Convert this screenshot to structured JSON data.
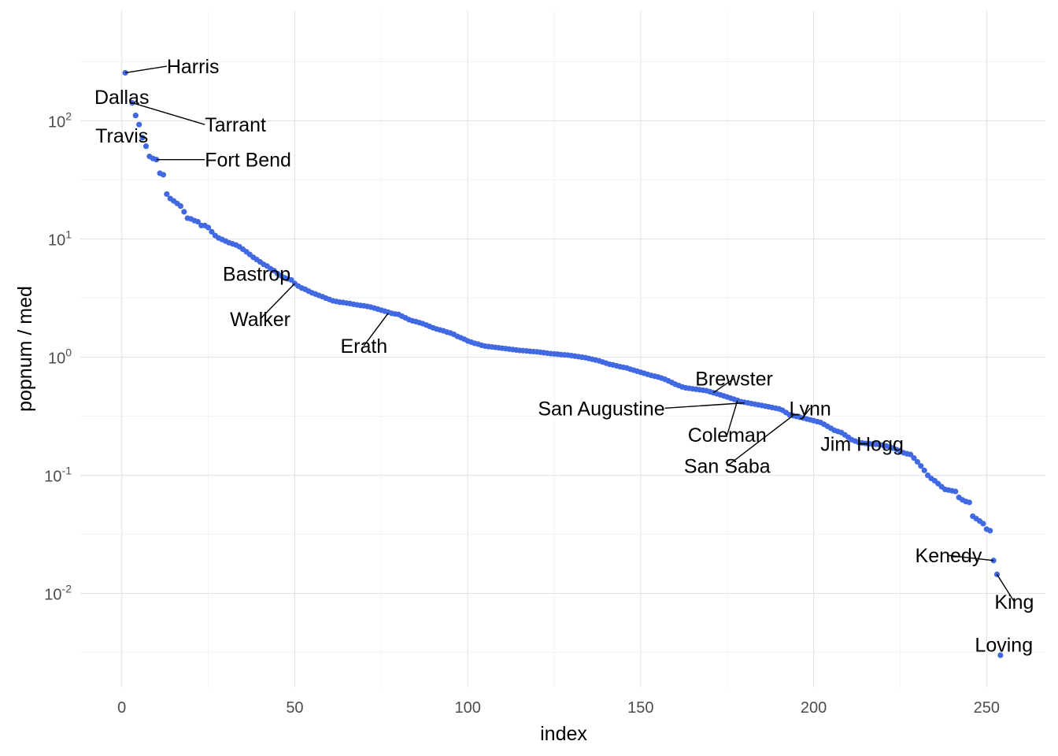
{
  "chart_data": {
    "type": "scatter",
    "xlabel": "index",
    "ylabel": "popnum / med",
    "x_scale": "linear",
    "y_scale": "log10",
    "xlim": [
      -12,
      267
    ],
    "ylim": [
      0.0016,
      850
    ],
    "x_ticks": [
      {
        "value": 0,
        "label": "0"
      },
      {
        "value": 50,
        "label": "50"
      },
      {
        "value": 100,
        "label": "100"
      },
      {
        "value": 150,
        "label": "150"
      },
      {
        "value": 200,
        "label": "200"
      },
      {
        "value": 250,
        "label": "250"
      }
    ],
    "y_ticks": [
      {
        "value": 0.01,
        "base": "10",
        "exp": "-2"
      },
      {
        "value": 0.1,
        "base": "10",
        "exp": "-1"
      },
      {
        "value": 1,
        "base": "10",
        "exp": "0"
      },
      {
        "value": 10,
        "base": "10",
        "exp": "1"
      },
      {
        "value": 100,
        "base": "10",
        "exp": "2"
      }
    ],
    "grid": true,
    "point_color": "#4169E1",
    "points": [
      [
        1,
        255
      ],
      [
        3,
        142
      ],
      [
        4,
        111
      ],
      [
        5,
        93
      ],
      [
        6,
        72
      ],
      [
        7,
        61
      ],
      [
        8,
        50
      ],
      [
        9,
        48
      ],
      [
        10,
        47
      ],
      [
        11,
        36
      ],
      [
        12,
        35
      ],
      [
        13,
        24
      ],
      [
        14,
        22
      ],
      [
        15,
        21
      ],
      [
        16,
        20
      ],
      [
        17,
        19
      ],
      [
        18,
        17
      ],
      [
        19,
        15
      ],
      [
        20,
        14.8
      ],
      [
        21,
        14.3
      ],
      [
        22,
        14
      ],
      [
        23,
        13
      ],
      [
        24,
        13
      ],
      [
        25,
        12.5
      ],
      [
        26,
        11.5
      ],
      [
        27,
        10.7
      ],
      [
        28,
        10.2
      ],
      [
        29,
        9.9
      ],
      [
        30,
        9.6
      ],
      [
        31,
        9.3
      ],
      [
        32,
        9.1
      ],
      [
        33,
        8.9
      ],
      [
        34,
        8.6
      ],
      [
        35,
        8.2
      ],
      [
        36,
        7.8
      ],
      [
        37,
        7.4
      ],
      [
        38,
        7.0
      ],
      [
        39,
        6.7
      ],
      [
        40,
        6.4
      ],
      [
        41,
        6.1
      ],
      [
        42,
        5.9
      ],
      [
        43,
        5.6
      ],
      [
        44,
        5.4
      ],
      [
        45,
        5.1
      ],
      [
        46,
        4.9
      ],
      [
        47,
        4.7
      ],
      [
        48,
        4.6
      ],
      [
        49,
        4.5
      ],
      [
        50,
        4.2
      ],
      [
        51,
        4.0
      ],
      [
        52,
        3.85
      ],
      [
        53,
        3.75
      ],
      [
        54,
        3.62
      ],
      [
        55,
        3.5
      ],
      [
        56,
        3.42
      ],
      [
        57,
        3.33
      ],
      [
        58,
        3.25
      ],
      [
        59,
        3.16
      ],
      [
        60,
        3.08
      ],
      [
        61,
        3.0
      ],
      [
        62,
        2.96
      ],
      [
        63,
        2.92
      ],
      [
        64,
        2.9
      ],
      [
        65,
        2.87
      ],
      [
        66,
        2.84
      ],
      [
        67,
        2.8
      ],
      [
        68,
        2.77
      ],
      [
        69,
        2.74
      ],
      [
        70,
        2.72
      ],
      [
        71,
        2.69
      ],
      [
        72,
        2.65
      ],
      [
        73,
        2.6
      ],
      [
        74,
        2.55
      ],
      [
        75,
        2.5
      ],
      [
        76,
        2.45
      ],
      [
        77,
        2.4
      ],
      [
        78,
        2.35
      ],
      [
        79,
        2.32
      ],
      [
        80,
        2.3
      ],
      [
        81,
        2.22
      ],
      [
        82,
        2.15
      ],
      [
        83,
        2.08
      ],
      [
        84,
        2.03
      ],
      [
        85,
        2.0
      ],
      [
        86,
        1.96
      ],
      [
        87,
        1.92
      ],
      [
        88,
        1.87
      ],
      [
        89,
        1.82
      ],
      [
        90,
        1.77
      ],
      [
        91,
        1.73
      ],
      [
        92,
        1.7
      ],
      [
        93,
        1.67
      ],
      [
        94,
        1.63
      ],
      [
        95,
        1.6
      ],
      [
        96,
        1.56
      ],
      [
        97,
        1.5
      ],
      [
        98,
        1.46
      ],
      [
        99,
        1.42
      ],
      [
        100,
        1.37
      ],
      [
        101,
        1.34
      ],
      [
        102,
        1.31
      ],
      [
        103,
        1.29
      ],
      [
        104,
        1.26
      ],
      [
        105,
        1.24
      ],
      [
        106,
        1.23
      ],
      [
        107,
        1.22
      ],
      [
        108,
        1.21
      ],
      [
        109,
        1.2
      ],
      [
        110,
        1.19
      ],
      [
        111,
        1.18
      ],
      [
        112,
        1.17
      ],
      [
        113,
        1.16
      ],
      [
        114,
        1.15
      ],
      [
        115,
        1.14
      ],
      [
        116,
        1.135
      ],
      [
        117,
        1.13
      ],
      [
        118,
        1.12
      ],
      [
        119,
        1.115
      ],
      [
        120,
        1.11
      ],
      [
        121,
        1.1
      ],
      [
        122,
        1.09
      ],
      [
        123,
        1.08
      ],
      [
        124,
        1.07
      ],
      [
        125,
        1.065
      ],
      [
        126,
        1.06
      ],
      [
        127,
        1.05
      ],
      [
        128,
        1.045
      ],
      [
        129,
        1.04
      ],
      [
        130,
        1.03
      ],
      [
        131,
        1.02
      ],
      [
        132,
        1.01
      ],
      [
        133,
        1.0
      ],
      [
        134,
        0.99
      ],
      [
        135,
        0.975
      ],
      [
        136,
        0.96
      ],
      [
        137,
        0.945
      ],
      [
        138,
        0.93
      ],
      [
        139,
        0.91
      ],
      [
        140,
        0.89
      ],
      [
        141,
        0.87
      ],
      [
        142,
        0.86
      ],
      [
        143,
        0.845
      ],
      [
        144,
        0.83
      ],
      [
        145,
        0.82
      ],
      [
        146,
        0.81
      ],
      [
        147,
        0.79
      ],
      [
        148,
        0.775
      ],
      [
        149,
        0.76
      ],
      [
        150,
        0.745
      ],
      [
        151,
        0.73
      ],
      [
        152,
        0.715
      ],
      [
        153,
        0.7
      ],
      [
        154,
        0.69
      ],
      [
        155,
        0.68
      ],
      [
        156,
        0.665
      ],
      [
        157,
        0.65
      ],
      [
        158,
        0.63
      ],
      [
        159,
        0.61
      ],
      [
        160,
        0.59
      ],
      [
        161,
        0.575
      ],
      [
        162,
        0.56
      ],
      [
        163,
        0.55
      ],
      [
        164,
        0.545
      ],
      [
        165,
        0.54
      ],
      [
        166,
        0.535
      ],
      [
        167,
        0.53
      ],
      [
        168,
        0.525
      ],
      [
        169,
        0.52
      ],
      [
        170,
        0.51
      ],
      [
        171,
        0.5
      ],
      [
        172,
        0.49
      ],
      [
        173,
        0.48
      ],
      [
        174,
        0.47
      ],
      [
        175,
        0.46
      ],
      [
        176,
        0.45
      ],
      [
        177,
        0.44
      ],
      [
        178,
        0.43
      ],
      [
        179,
        0.42
      ],
      [
        180,
        0.415
      ],
      [
        181,
        0.41
      ],
      [
        182,
        0.405
      ],
      [
        183,
        0.4
      ],
      [
        184,
        0.395
      ],
      [
        185,
        0.39
      ],
      [
        186,
        0.385
      ],
      [
        187,
        0.38
      ],
      [
        188,
        0.375
      ],
      [
        189,
        0.37
      ],
      [
        190,
        0.365
      ],
      [
        191,
        0.355
      ],
      [
        192,
        0.34
      ],
      [
        193,
        0.325
      ],
      [
        194,
        0.32
      ],
      [
        195,
        0.315
      ],
      [
        196,
        0.31
      ],
      [
        197,
        0.305
      ],
      [
        198,
        0.3
      ],
      [
        199,
        0.295
      ],
      [
        200,
        0.29
      ],
      [
        201,
        0.285
      ],
      [
        202,
        0.28
      ],
      [
        203,
        0.27
      ],
      [
        204,
        0.26
      ],
      [
        205,
        0.25
      ],
      [
        206,
        0.24
      ],
      [
        207,
        0.235
      ],
      [
        208,
        0.23
      ],
      [
        209,
        0.22
      ],
      [
        210,
        0.21
      ],
      [
        211,
        0.2
      ],
      [
        212,
        0.195
      ],
      [
        213,
        0.19
      ],
      [
        214,
        0.188
      ],
      [
        215,
        0.186
      ],
      [
        216,
        0.185
      ],
      [
        217,
        0.184
      ],
      [
        218,
        0.183
      ],
      [
        219,
        0.182
      ],
      [
        220,
        0.18
      ],
      [
        221,
        0.177
      ],
      [
        222,
        0.174
      ],
      [
        223,
        0.17
      ],
      [
        224,
        0.165
      ],
      [
        225,
        0.16
      ],
      [
        226,
        0.155
      ],
      [
        227,
        0.152
      ],
      [
        228,
        0.15
      ],
      [
        229,
        0.14
      ],
      [
        230,
        0.13
      ],
      [
        231,
        0.12
      ],
      [
        232,
        0.11
      ],
      [
        233,
        0.1
      ],
      [
        234,
        0.094
      ],
      [
        235,
        0.09
      ],
      [
        236,
        0.085
      ],
      [
        237,
        0.08
      ],
      [
        238,
        0.076
      ],
      [
        239,
        0.075
      ],
      [
        240,
        0.074
      ],
      [
        241,
        0.073
      ],
      [
        242,
        0.065
      ],
      [
        243,
        0.062
      ],
      [
        244,
        0.06
      ],
      [
        245,
        0.059
      ],
      [
        246,
        0.045
      ],
      [
        247,
        0.043
      ],
      [
        248,
        0.041
      ],
      [
        249,
        0.039
      ],
      [
        250,
        0.035
      ],
      [
        251,
        0.034
      ],
      [
        252,
        0.019
      ],
      [
        253,
        0.0145
      ],
      [
        254,
        0.003
      ]
    ],
    "annotations": [
      {
        "label": "Harris",
        "x": 1,
        "y": 255,
        "lx": 13,
        "ly": 290,
        "anchor": "start",
        "leader": true
      },
      {
        "label": "Dallas",
        "x": 2,
        "y": 180,
        "lx": 0,
        "ly": 160,
        "anchor": "middle",
        "leader": false
      },
      {
        "label": "Tarrant",
        "x": 3,
        "y": 142,
        "lx": 24,
        "ly": 93,
        "anchor": "start",
        "leader": true
      },
      {
        "label": "Travis",
        "x": 4,
        "y": 111,
        "lx": 0,
        "ly": 75,
        "anchor": "middle",
        "leader": false
      },
      {
        "label": "Fort Bend",
        "x": 10,
        "y": 47,
        "lx": 24,
        "ly": 47,
        "anchor": "start",
        "leader": true
      },
      {
        "label": "Bastrop",
        "x": 47,
        "y": 4.7,
        "lx": 39,
        "ly": 5.1,
        "anchor": "middle",
        "leader": false
      },
      {
        "label": "Walker",
        "x": 50,
        "y": 4.2,
        "lx": 40,
        "ly": 2.1,
        "anchor": "middle",
        "leader": true
      },
      {
        "label": "Erath",
        "x": 77,
        "y": 2.35,
        "lx": 70,
        "ly": 1.25,
        "anchor": "middle",
        "leader": true
      },
      {
        "label": "Brewster",
        "x": 171,
        "y": 0.5,
        "lx": 177,
        "ly": 0.66,
        "anchor": "middle",
        "leader": true
      },
      {
        "label": "San Augustine",
        "x": 180,
        "y": 0.41,
        "lx": 157,
        "ly": 0.37,
        "anchor": "end",
        "leader": true
      },
      {
        "label": "Coleman",
        "x": 178,
        "y": 0.43,
        "lx": 175,
        "ly": 0.22,
        "anchor": "middle",
        "leader": true
      },
      {
        "label": "Lynn",
        "x": 197,
        "y": 0.31,
        "lx": 199,
        "ly": 0.37,
        "anchor": "middle",
        "leader": true
      },
      {
        "label": "Jim Hogg",
        "x": 193,
        "y": 0.33,
        "lx": 214,
        "ly": 0.185,
        "anchor": "middle",
        "leader": false
      },
      {
        "label": "San Saba",
        "x": 194,
        "y": 0.32,
        "lx": 175,
        "ly": 0.12,
        "anchor": "middle",
        "leader": true
      },
      {
        "label": "Kenedy",
        "x": 252,
        "y": 0.019,
        "lx": 239,
        "ly": 0.021,
        "anchor": "middle",
        "leader": true
      },
      {
        "label": "King",
        "x": 253,
        "y": 0.0145,
        "lx": 258,
        "ly": 0.0085,
        "anchor": "middle",
        "leader": true
      },
      {
        "label": "Loving",
        "x": 254,
        "y": 0.003,
        "lx": 255,
        "ly": 0.0037,
        "anchor": "middle",
        "leader": false
      }
    ]
  }
}
